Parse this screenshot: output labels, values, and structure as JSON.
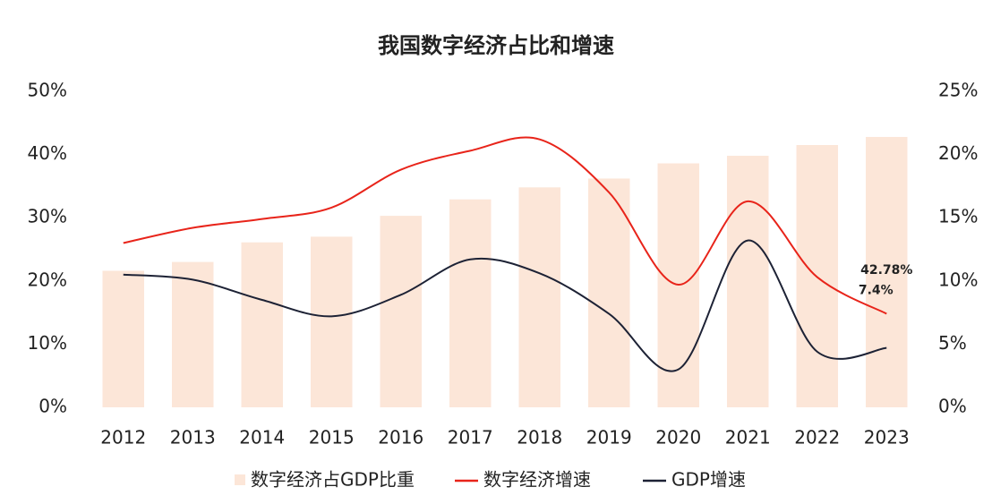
{
  "chart_data": {
    "type": "bar-line",
    "title": "我国数字经济占比和增速",
    "categories": [
      "2012",
      "2013",
      "2014",
      "2015",
      "2016",
      "2017",
      "2018",
      "2019",
      "2020",
      "2021",
      "2022",
      "2023"
    ],
    "series": [
      {
        "name": "数字经济占GDP比重",
        "type": "bar",
        "axis": "y",
        "color": "#f9d2b8",
        "values": [
          21.6,
          23,
          26.1,
          27,
          30.3,
          32.9,
          34.8,
          36.2,
          38.6,
          39.8,
          41.5,
          42.78
        ],
        "value_labels": [
          null,
          null,
          null,
          null,
          null,
          null,
          null,
          null,
          null,
          null,
          null,
          "42.78%"
        ]
      },
      {
        "name": "数字经济增速",
        "type": "line",
        "axis": "y2",
        "color": "#e8241a",
        "values": [
          13.0,
          14.2,
          14.9,
          15.8,
          18.8,
          20.3,
          21.2,
          17.0,
          9.7,
          16.3,
          10.3,
          7.4
        ],
        "value_labels": [
          null,
          null,
          null,
          null,
          null,
          null,
          null,
          null,
          null,
          null,
          null,
          "7.4%"
        ]
      },
      {
        "name": "GDP增速",
        "type": "line",
        "axis": "y2",
        "color": "#1d2235",
        "values": [
          10.5,
          10.1,
          8.5,
          7.2,
          8.9,
          11.7,
          10.6,
          7.4,
          3.0,
          13.2,
          4.4,
          4.7
        ]
      }
    ],
    "ylim": [
      0,
      50
    ],
    "yticks": [
      {
        "value": 0,
        "label": "0%"
      },
      {
        "value": 10,
        "label": "10%"
      },
      {
        "value": 20,
        "label": "20%"
      },
      {
        "value": 30,
        "label": "30%"
      },
      {
        "value": 40,
        "label": "40%"
      },
      {
        "value": 50,
        "label": "50%"
      }
    ],
    "y2lim": [
      0,
      25
    ],
    "y2ticks": [
      {
        "value": 0,
        "label": "0%"
      },
      {
        "value": 5,
        "label": "5%"
      },
      {
        "value": 10,
        "label": "10%"
      },
      {
        "value": 15,
        "label": "15%"
      },
      {
        "value": 20,
        "label": "20%"
      },
      {
        "value": 25,
        "label": "25%"
      }
    ],
    "grid": false,
    "legend": "bottom"
  }
}
